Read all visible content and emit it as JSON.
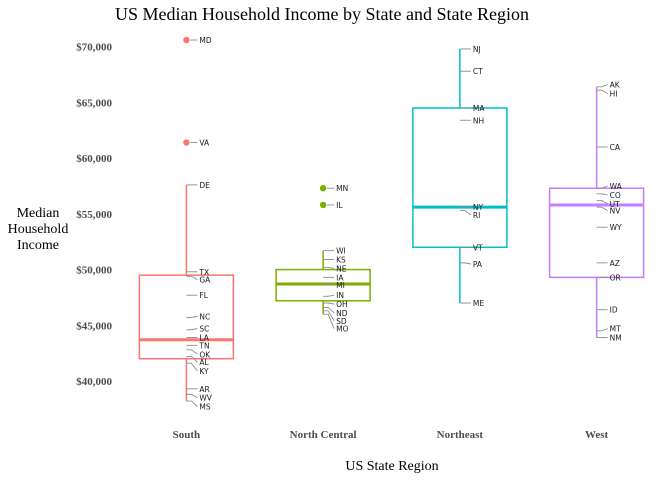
{
  "chart_data": {
    "type": "boxplot",
    "title": "US Median Household Income by State and State Region",
    "xlabel": "US State Region",
    "ylabel_lines": [
      "Median",
      "Household",
      "Income"
    ],
    "ylim": [
      36500,
      71500
    ],
    "yticks": [
      40000,
      45000,
      50000,
      55000,
      60000,
      65000,
      70000
    ],
    "ytick_labels": [
      "$40,000",
      "$45,000",
      "$50,000",
      "$55,000",
      "$60,000",
      "$65,000",
      "$70,000"
    ],
    "grid": false,
    "categories": [
      "South",
      "North Central",
      "Northeast",
      "West"
    ],
    "colors": [
      "#F8766D",
      "#7CAE00",
      "#00BFC4",
      "#C77CFF"
    ],
    "boxes": [
      {
        "region": "South",
        "q1": 42000,
        "median": 43700,
        "q3": 49500,
        "whisker_low": 38200,
        "whisker_high": 57600
      },
      {
        "region": "North Central",
        "q1": 47200,
        "median": 48700,
        "q3": 50000,
        "whisker_low": 46000,
        "whisker_high": 51700
      },
      {
        "region": "Northeast",
        "q1": 52000,
        "median": 55600,
        "q3": 64500,
        "whisker_low": 47000,
        "whisker_high": 69800
      },
      {
        "region": "West",
        "q1": 49300,
        "median": 55800,
        "q3": 57300,
        "whisker_low": 43900,
        "whisker_high": 66400
      }
    ],
    "outliers": [
      {
        "region": "South",
        "state": "MD",
        "value": 70600
      },
      {
        "region": "South",
        "state": "VA",
        "value": 61400
      },
      {
        "region": "North Central",
        "state": "MN",
        "value": 57300
      },
      {
        "region": "North Central",
        "state": "IL",
        "value": 55800
      }
    ],
    "states": [
      {
        "region": "South",
        "state": "DE",
        "value": 57600,
        "label_value": 57600
      },
      {
        "region": "South",
        "state": "TX",
        "value": 49800,
        "label_value": 49800
      },
      {
        "region": "South",
        "state": "GA",
        "value": 49400,
        "label_value": 49100
      },
      {
        "region": "South",
        "state": "FL",
        "value": 47700,
        "label_value": 47700
      },
      {
        "region": "South",
        "state": "NC",
        "value": 45700,
        "label_value": 45800
      },
      {
        "region": "South",
        "state": "SC",
        "value": 44600,
        "label_value": 44700
      },
      {
        "region": "South",
        "state": "LA",
        "value": 43900,
        "label_value": 43900
      },
      {
        "region": "South",
        "state": "TN",
        "value": 43200,
        "label_value": 43200
      },
      {
        "region": "South",
        "state": "OK",
        "value": 42800,
        "label_value": 42400
      },
      {
        "region": "South",
        "state": "AL",
        "value": 42200,
        "label_value": 41700
      },
      {
        "region": "South",
        "state": "KY",
        "value": 41600,
        "label_value": 40900
      },
      {
        "region": "South",
        "state": "AR",
        "value": 39300,
        "label_value": 39300
      },
      {
        "region": "South",
        "state": "WV",
        "value": 38800,
        "label_value": 38500
      },
      {
        "region": "South",
        "state": "MS",
        "value": 38200,
        "label_value": 37700
      },
      {
        "region": "North Central",
        "state": "WI",
        "value": 51700,
        "label_value": 51700
      },
      {
        "region": "North Central",
        "state": "KS",
        "value": 50900,
        "label_value": 50900
      },
      {
        "region": "North Central",
        "state": "NE",
        "value": 50200,
        "label_value": 50100
      },
      {
        "region": "North Central",
        "state": "IA",
        "value": 49300,
        "label_value": 49300
      },
      {
        "region": "North Central",
        "state": "MI",
        "value": 48700,
        "label_value": 48600
      },
      {
        "region": "North Central",
        "state": "IN",
        "value": 47600,
        "label_value": 47700
      },
      {
        "region": "North Central",
        "state": "OH",
        "value": 47000,
        "label_value": 46900
      },
      {
        "region": "North Central",
        "state": "ND",
        "value": 46600,
        "label_value": 46100
      },
      {
        "region": "North Central",
        "state": "SD",
        "value": 46300,
        "label_value": 45400
      },
      {
        "region": "North Central",
        "state": "MO",
        "value": 46000,
        "label_value": 44700
      },
      {
        "region": "Northeast",
        "state": "NJ",
        "value": 69800,
        "label_value": 69800
      },
      {
        "region": "Northeast",
        "state": "CT",
        "value": 67800,
        "label_value": 67800
      },
      {
        "region": "Northeast",
        "state": "MA",
        "value": 64500,
        "label_value": 64500
      },
      {
        "region": "Northeast",
        "state": "NH",
        "value": 63400,
        "label_value": 63400
      },
      {
        "region": "Northeast",
        "state": "NY",
        "value": 55600,
        "label_value": 55600
      },
      {
        "region": "Northeast",
        "state": "RI",
        "value": 55300,
        "label_value": 54900
      },
      {
        "region": "Northeast",
        "state": "VT",
        "value": 52000,
        "label_value": 52000
      },
      {
        "region": "Northeast",
        "state": "PA",
        "value": 50600,
        "label_value": 50500
      },
      {
        "region": "Northeast",
        "state": "ME",
        "value": 47000,
        "label_value": 47000
      },
      {
        "region": "West",
        "state": "AK",
        "value": 66400,
        "label_value": 66600
      },
      {
        "region": "West",
        "state": "HI",
        "value": 66100,
        "label_value": 65800
      },
      {
        "region": "West",
        "state": "CA",
        "value": 61000,
        "label_value": 61000
      },
      {
        "region": "West",
        "state": "WA",
        "value": 57300,
        "label_value": 57500
      },
      {
        "region": "West",
        "state": "CO",
        "value": 56800,
        "label_value": 56700
      },
      {
        "region": "West",
        "state": "UT",
        "value": 56200,
        "label_value": 55900
      },
      {
        "region": "West",
        "state": "NV",
        "value": 55600,
        "label_value": 55300
      },
      {
        "region": "West",
        "state": "WY",
        "value": 53800,
        "label_value": 53800
      },
      {
        "region": "West",
        "state": "AZ",
        "value": 50600,
        "label_value": 50600
      },
      {
        "region": "West",
        "state": "OR",
        "value": 49300,
        "label_value": 49300
      },
      {
        "region": "West",
        "state": "ID",
        "value": 46400,
        "label_value": 46400
      },
      {
        "region": "West",
        "state": "MT",
        "value": 44500,
        "label_value": 44700
      },
      {
        "region": "West",
        "state": "NM",
        "value": 43900,
        "label_value": 43900
      }
    ]
  }
}
